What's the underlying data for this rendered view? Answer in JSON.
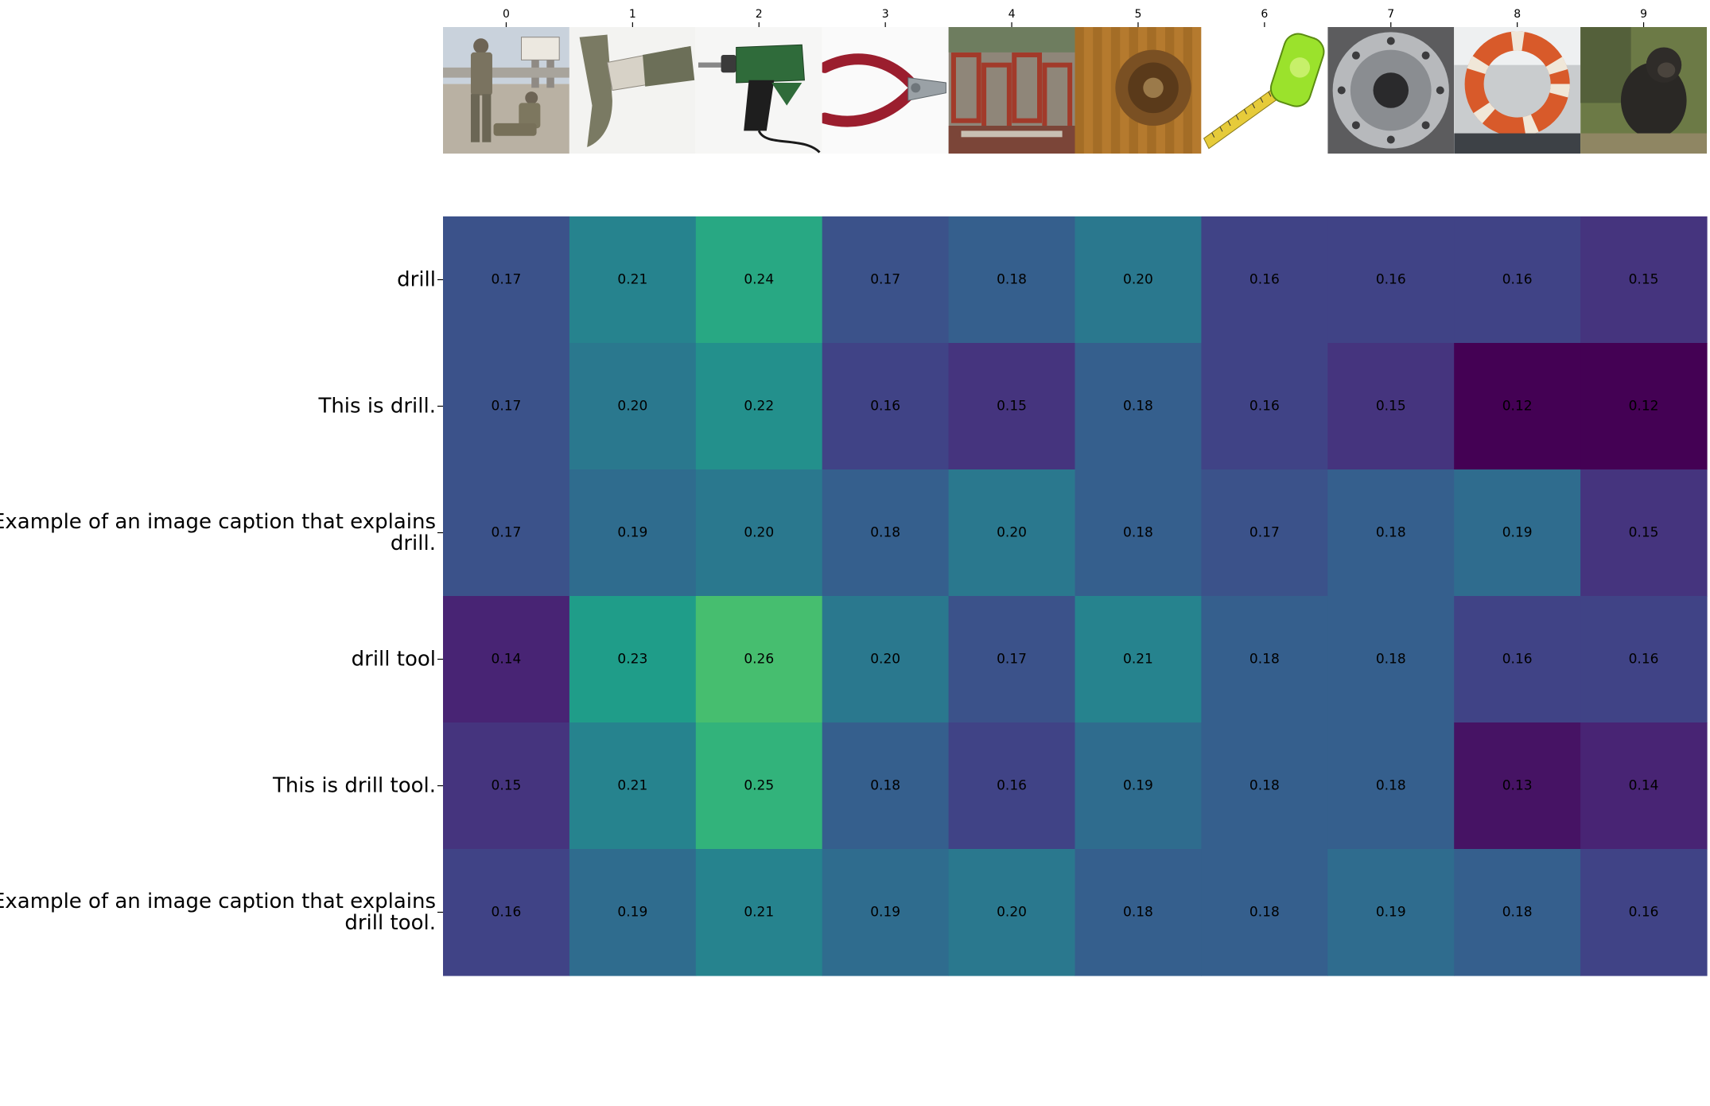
{
  "chart_data": {
    "type": "heatmap",
    "title": "",
    "xlabel": "",
    "ylabel": "",
    "colormap": "viridis",
    "value_range": [
      0.12,
      0.26
    ],
    "columns": [
      "0",
      "1",
      "2",
      "3",
      "4",
      "5",
      "6",
      "7",
      "8",
      "9"
    ],
    "images": [
      {
        "column": "0",
        "depicts": "soldiers-on-airfield"
      },
      {
        "column": "1",
        "depicts": "hammer"
      },
      {
        "column": "2",
        "depicts": "power-drill"
      },
      {
        "column": "3",
        "depicts": "pliers"
      },
      {
        "column": "4",
        "depicts": "brick-building-construction"
      },
      {
        "column": "5",
        "depicts": "wooden-wheel-closeup"
      },
      {
        "column": "6",
        "depicts": "tape-measure"
      },
      {
        "column": "7",
        "depicts": "metal-machine-part"
      },
      {
        "column": "8",
        "depicts": "coast-guard-life-ring"
      },
      {
        "column": "9",
        "depicts": "monkey"
      }
    ],
    "rows": [
      {
        "label_lines": [
          "drill"
        ],
        "values": [
          0.17,
          0.21,
          0.24,
          0.17,
          0.18,
          0.2,
          0.16,
          0.16,
          0.16,
          0.15
        ]
      },
      {
        "label_lines": [
          "This is drill."
        ],
        "values": [
          0.17,
          0.2,
          0.22,
          0.16,
          0.15,
          0.18,
          0.16,
          0.15,
          0.12,
          0.12
        ]
      },
      {
        "label_lines": [
          "Example of an image caption that explains",
          "drill."
        ],
        "values": [
          0.17,
          0.19,
          0.2,
          0.18,
          0.2,
          0.18,
          0.17,
          0.18,
          0.19,
          0.15
        ]
      },
      {
        "label_lines": [
          "drill tool"
        ],
        "values": [
          0.14,
          0.23,
          0.26,
          0.2,
          0.17,
          0.21,
          0.18,
          0.18,
          0.16,
          0.16
        ]
      },
      {
        "label_lines": [
          "This is drill tool."
        ],
        "values": [
          0.15,
          0.21,
          0.25,
          0.18,
          0.16,
          0.19,
          0.18,
          0.18,
          0.13,
          0.14
        ]
      },
      {
        "label_lines": [
          "Example of an image caption that explains",
          "drill tool."
        ],
        "values": [
          0.16,
          0.19,
          0.21,
          0.19,
          0.2,
          0.18,
          0.18,
          0.19,
          0.18,
          0.16
        ]
      }
    ]
  }
}
